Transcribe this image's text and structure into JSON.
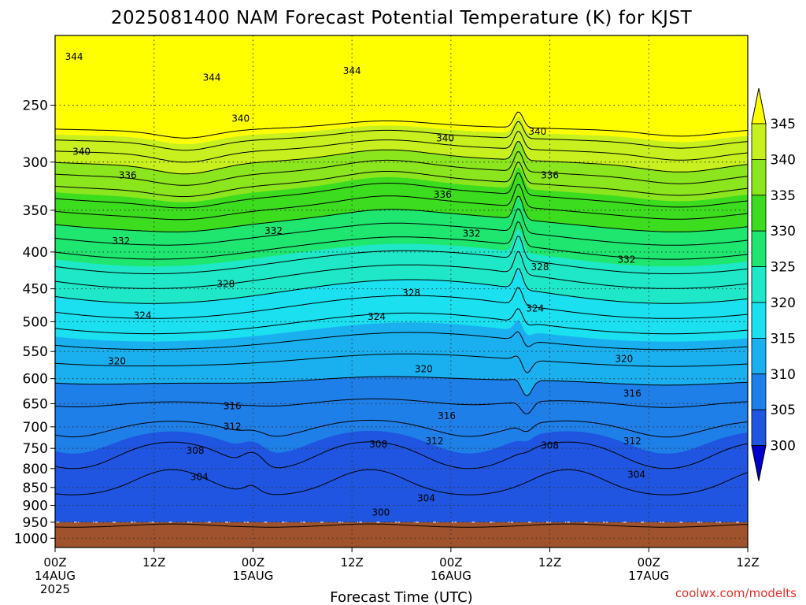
{
  "chart_data": {
    "type": "contour",
    "title": "2025081400 NAM Forecast Potential Temperature (K) for KJST",
    "xlabel": "Forecast Time (UTC)",
    "ylabel": "",
    "credit": "coolwx.com/modelts",
    "x_ticks": [
      {
        "hour": 0,
        "label": "00Z",
        "sub1": "14AUG",
        "sub2": "2025"
      },
      {
        "hour": 12,
        "label": "12Z",
        "sub1": "",
        "sub2": ""
      },
      {
        "hour": 24,
        "label": "00Z",
        "sub1": "15AUG",
        "sub2": ""
      },
      {
        "hour": 36,
        "label": "12Z",
        "sub1": "",
        "sub2": ""
      },
      {
        "hour": 48,
        "label": "00Z",
        "sub1": "16AUG",
        "sub2": ""
      },
      {
        "hour": 60,
        "label": "12Z",
        "sub1": "",
        "sub2": ""
      },
      {
        "hour": 72,
        "label": "00Z",
        "sub1": "17AUG",
        "sub2": ""
      },
      {
        "hour": 84,
        "label": "12Z",
        "sub1": "",
        "sub2": ""
      }
    ],
    "xlim": [
      0,
      84
    ],
    "y_ticks": [
      250,
      300,
      350,
      400,
      450,
      500,
      550,
      600,
      650,
      700,
      750,
      800,
      850,
      900,
      950,
      1000
    ],
    "ylim": [
      200,
      1030
    ],
    "y_scale": "log",
    "surface_pressure_hPa": 950,
    "colorbar": {
      "ticks": [
        300,
        305,
        310,
        315,
        320,
        325,
        330,
        335,
        340,
        345
      ],
      "colors": [
        "#1a1ad6",
        "#1f55e0",
        "#1f7fe8",
        "#1ab0f0",
        "#1ae0f0",
        "#1ee8c8",
        "#1ee66e",
        "#3cdc1e",
        "#8ce61e",
        "#c8f01e",
        "#ffff00"
      ],
      "under_color": "#0000cc",
      "over_color": "#ffff00"
    },
    "contour_interval_K": 2,
    "contour_labels": [
      {
        "hour": 2.3,
        "p": 214,
        "value": "344"
      },
      {
        "hour": 19.0,
        "p": 229,
        "value": "344"
      },
      {
        "hour": 36.0,
        "p": 224,
        "value": "344"
      },
      {
        "hour": 22.5,
        "p": 261,
        "value": "340"
      },
      {
        "hour": 3.2,
        "p": 290,
        "value": "340"
      },
      {
        "hour": 47.3,
        "p": 278,
        "value": "340"
      },
      {
        "hour": 58.5,
        "p": 272,
        "value": "340"
      },
      {
        "hour": 8.8,
        "p": 313,
        "value": "336"
      },
      {
        "hour": 47.0,
        "p": 333,
        "value": "336"
      },
      {
        "hour": 60.0,
        "p": 313,
        "value": "336"
      },
      {
        "hour": 8.0,
        "p": 386,
        "value": "332"
      },
      {
        "hour": 26.5,
        "p": 374,
        "value": "332"
      },
      {
        "hour": 50.5,
        "p": 377,
        "value": "332"
      },
      {
        "hour": 69.3,
        "p": 410,
        "value": "332"
      },
      {
        "hour": 58.8,
        "p": 420,
        "value": "328"
      },
      {
        "hour": 20.7,
        "p": 443,
        "value": "328"
      },
      {
        "hour": 43.2,
        "p": 456,
        "value": "328"
      },
      {
        "hour": 10.6,
        "p": 490,
        "value": "324"
      },
      {
        "hour": 39.0,
        "p": 492,
        "value": "324"
      },
      {
        "hour": 58.2,
        "p": 479,
        "value": "324"
      },
      {
        "hour": 7.5,
        "p": 567,
        "value": "320"
      },
      {
        "hour": 44.7,
        "p": 582,
        "value": "320"
      },
      {
        "hour": 69.0,
        "p": 563,
        "value": "320"
      },
      {
        "hour": 21.5,
        "p": 655,
        "value": "316"
      },
      {
        "hour": 47.5,
        "p": 676,
        "value": "316"
      },
      {
        "hour": 70.0,
        "p": 629,
        "value": "316"
      },
      {
        "hour": 21.5,
        "p": 699,
        "value": "312"
      },
      {
        "hour": 46.0,
        "p": 733,
        "value": "312"
      },
      {
        "hour": 70.0,
        "p": 733,
        "value": "312"
      },
      {
        "hour": 17.0,
        "p": 755,
        "value": "308"
      },
      {
        "hour": 39.2,
        "p": 740,
        "value": "308"
      },
      {
        "hour": 60.0,
        "p": 743,
        "value": "308"
      },
      {
        "hour": 17.5,
        "p": 822,
        "value": "304"
      },
      {
        "hour": 45.0,
        "p": 880,
        "value": "304"
      },
      {
        "hour": 70.5,
        "p": 816,
        "value": "304"
      },
      {
        "hour": 39.5,
        "p": 921,
        "value": "300"
      }
    ]
  }
}
